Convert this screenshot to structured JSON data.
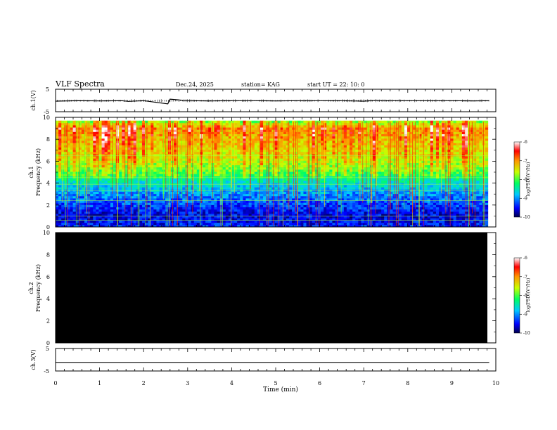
{
  "header": {
    "title": "VLF Spectra",
    "date": "Dec.24, 2025",
    "station": "station= KAG",
    "start": "start  UT =  22: 10: 0"
  },
  "chart_data": [
    {
      "type": "line",
      "panel": "ch1-waveform",
      "ylabel": "ch.1(V)",
      "ylim": [
        -5,
        5
      ],
      "ytick_labels": [
        "5",
        "-5"
      ],
      "xlim": [
        0,
        10
      ],
      "x": [
        0.0,
        0.5,
        1.0,
        1.5,
        1.65,
        2.0,
        2.55,
        2.6,
        3.0,
        3.5,
        4.0,
        4.5,
        5.0,
        5.5,
        6.0,
        6.5,
        7.0,
        7.3,
        7.5,
        8.0,
        8.5,
        9.0,
        9.5,
        9.85
      ],
      "values": [
        -0.3,
        -0.1,
        -0.2,
        -0.1,
        -0.4,
        -0.1,
        -1.5,
        0.6,
        -0.1,
        -0.2,
        -0.1,
        -0.1,
        -0.2,
        -0.1,
        -0.1,
        -0.1,
        -0.3,
        0.1,
        -0.1,
        -0.1,
        -0.1,
        -0.1,
        -0.2,
        -0.1
      ]
    },
    {
      "type": "heatmap",
      "panel": "ch1-spectrogram",
      "ylabel_top": "ch.1",
      "ylabel": "Frequency (kHz)",
      "ylim": [
        0,
        10
      ],
      "ytick_labels": [
        "0",
        "2",
        "4",
        "6",
        "8",
        "10"
      ],
      "xlim": [
        0,
        10
      ],
      "colorbar": {
        "label": "log(PSD)(V²/Hz)",
        "range": [
          -10,
          -6
        ],
        "tick_labels": [
          "-6",
          "-7",
          "-8",
          "-9",
          "-10"
        ]
      },
      "z_by_freq": {
        "freq_khz": [
          0,
          1,
          2,
          3,
          4,
          5,
          6,
          7,
          8,
          9,
          9.6
        ],
        "log_psd": [
          -9.4,
          -9.6,
          -9.3,
          -9.0,
          -8.6,
          -8.0,
          -7.6,
          -7.4,
          -7.2,
          -7.0,
          -7.8
        ]
      }
    },
    {
      "type": "heatmap",
      "panel": "ch2-spectrogram",
      "ylabel_top": "ch.2",
      "ylabel": "Frequency (kHz)",
      "ylim": [
        0,
        10
      ],
      "ytick_labels": [
        "0",
        "2",
        "4",
        "6",
        "8",
        "10"
      ],
      "xlim": [
        0,
        10
      ],
      "colorbar": {
        "label": "log(PSD)(V²/Hz)",
        "range": [
          -10,
          -6
        ],
        "tick_labels": [
          "-6",
          "-7",
          "-8",
          "-9",
          "-10"
        ]
      },
      "fill": "no data (black)"
    },
    {
      "type": "line",
      "panel": "ch3-waveform",
      "ylabel": "ch.3(V)",
      "ylim": [
        -5,
        5
      ],
      "ytick_labels": [
        "5",
        "-5"
      ],
      "xlim": [
        0,
        10
      ],
      "x": [
        0,
        9.85
      ],
      "values": [
        -1.2,
        -1.2
      ],
      "xlabel": "Time (min)",
      "xtick_labels": [
        "0",
        "1",
        "2",
        "3",
        "4",
        "5",
        "6",
        "7",
        "8",
        "9",
        "10"
      ]
    }
  ],
  "colors": {
    "waveform": "#000000",
    "ch2_background": "#000000"
  }
}
